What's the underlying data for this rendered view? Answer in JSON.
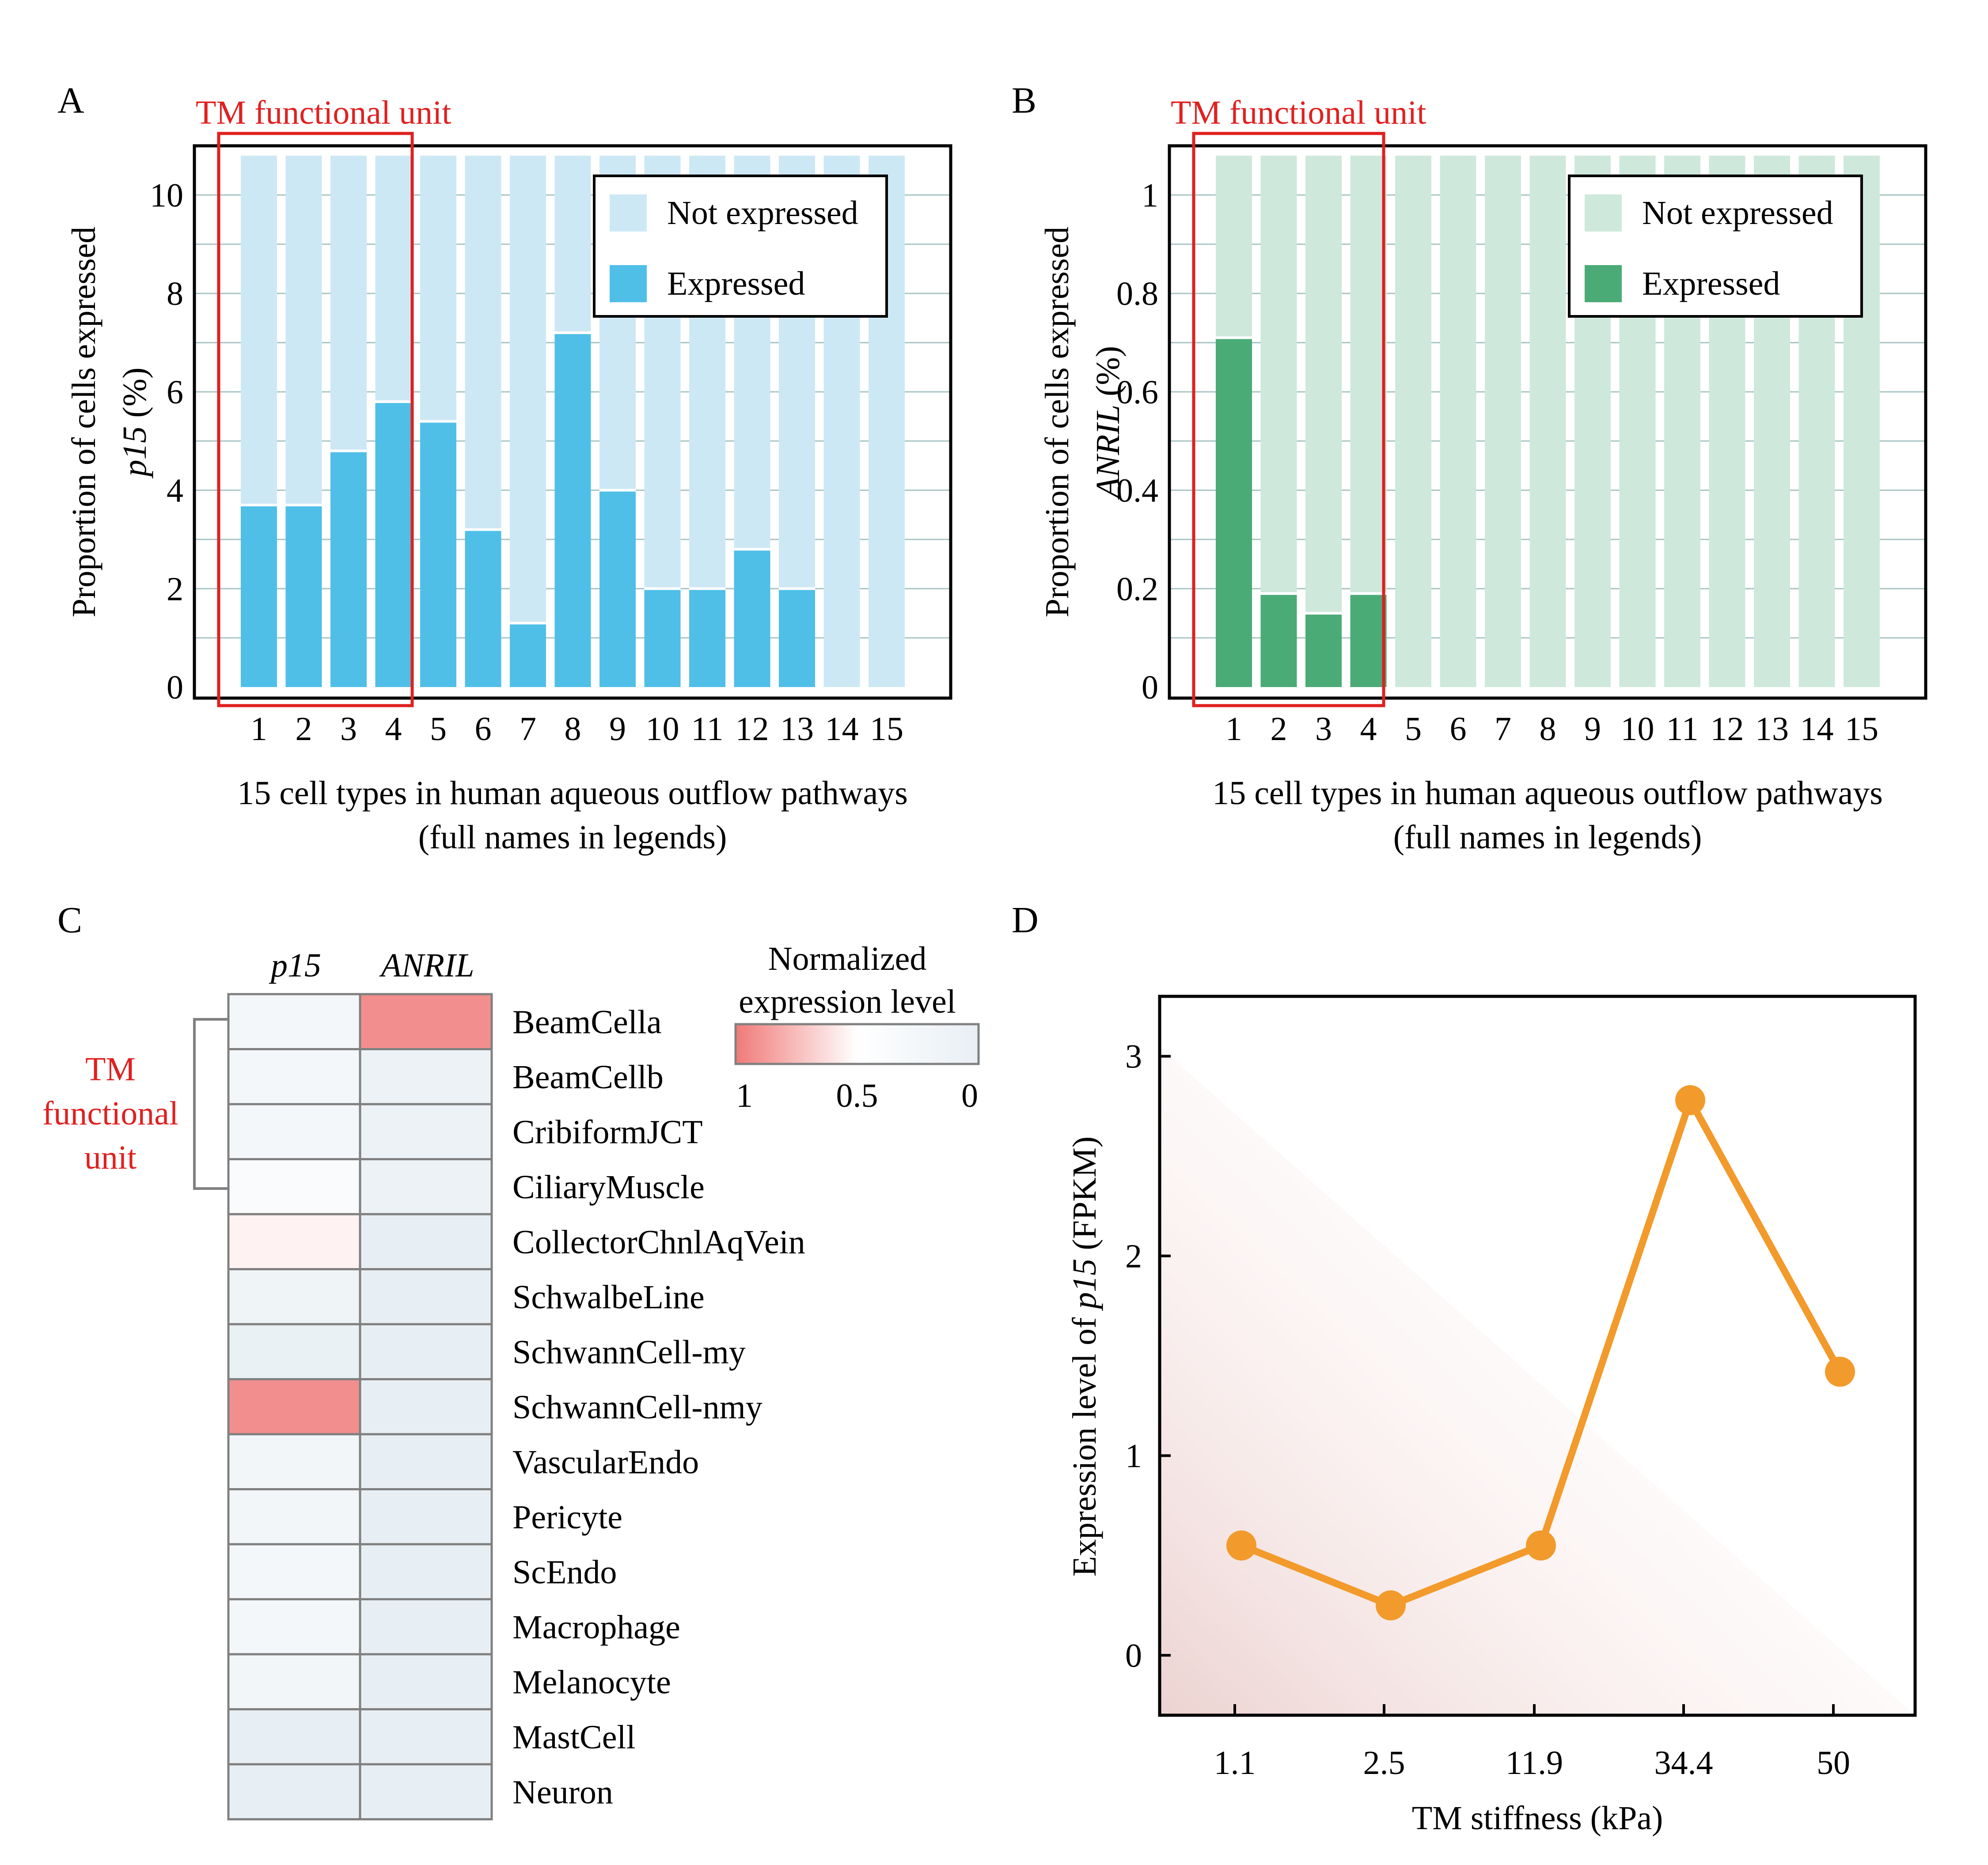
{
  "chart_data": [
    {
      "panel": "A",
      "type": "bar",
      "stacked": true,
      "annotation": "TM functional unit",
      "categories": [
        "1",
        "2",
        "3",
        "4",
        "5",
        "6",
        "7",
        "8",
        "9",
        "10",
        "11",
        "12",
        "13",
        "14",
        "15"
      ],
      "series": [
        {
          "name": "Expressed",
          "color": "#4fbfe8",
          "values": [
            3.7,
            3.7,
            4.8,
            5.8,
            5.4,
            3.2,
            1.3,
            7.2,
            4.0,
            2.0,
            2.0,
            2.8,
            2.0,
            0,
            0
          ]
        },
        {
          "name": "Not expressed",
          "color": "#cde8f5",
          "values": [
            7.1,
            7.1,
            6.0,
            5.0,
            5.4,
            7.6,
            9.5,
            3.6,
            6.8,
            8.8,
            8.8,
            8.0,
            8.8,
            10.8,
            10.8
          ]
        }
      ],
      "ylabel_line1": "Proportion of cells expressed",
      "ylabel_gene": "p15",
      "ylabel_unit": " (%)",
      "xlabel_line1": "15 cell types in human aqueous outflow pathways",
      "xlabel_line2": "(full names in legends)",
      "ylim": [
        0,
        11
      ],
      "yticks": [
        "0",
        "2",
        "4",
        "6",
        "8",
        "10"
      ],
      "legend": [
        "Not expressed",
        "Expressed"
      ],
      "legend_position": "top-right",
      "grid": true
    },
    {
      "panel": "B",
      "type": "bar",
      "stacked": true,
      "annotation": "TM functional unit",
      "categories": [
        "1",
        "2",
        "3",
        "4",
        "5",
        "6",
        "7",
        "8",
        "9",
        "10",
        "11",
        "12",
        "13",
        "14",
        "15"
      ],
      "series": [
        {
          "name": "Expressed",
          "color": "#4aab77",
          "values": [
            0.71,
            0.19,
            0.15,
            0.19,
            0,
            0,
            0,
            0,
            0,
            0,
            0,
            0,
            0,
            0,
            0
          ]
        },
        {
          "name": "Not expressed",
          "color": "#cfe8dc",
          "values": [
            0.37,
            0.89,
            0.93,
            0.89,
            1.08,
            1.08,
            1.08,
            1.08,
            1.08,
            1.08,
            1.08,
            1.08,
            1.08,
            1.08,
            1.08
          ]
        }
      ],
      "ylabel_line1": "Proportion of cells expressed",
      "ylabel_gene": "ANRIL",
      "ylabel_unit": " (%)",
      "xlabel_line1": "15 cell types in human aqueous outflow pathways",
      "xlabel_line2": "(full names in legends)",
      "ylim": [
        0,
        1.1
      ],
      "yticks": [
        "0",
        "0.2",
        "0.4",
        "0.6",
        "0.8",
        "1"
      ],
      "legend": [
        "Not expressed",
        "Expressed"
      ],
      "legend_position": "top-right",
      "grid": true
    },
    {
      "panel": "C",
      "type": "heatmap",
      "columns": [
        "p15",
        "ANRIL"
      ],
      "rows": [
        "BeamCella",
        "BeamCellb",
        "CribiformJCT",
        "CiliaryMuscle",
        "CollectorChnlAqVein",
        "SchwalbeLine",
        "SchwannCell-my",
        "SchwannCell-nmy",
        "VascularEndo",
        "Pericyte",
        "ScEndo",
        "Macrophage",
        "Melanocyte",
        "MastCell",
        "Neuron"
      ],
      "values": [
        [
          0.25,
          0.92
        ],
        [
          0.25,
          0.08
        ],
        [
          0.25,
          0.08
        ],
        [
          0.38,
          0.08
        ],
        [
          0.55,
          0
        ],
        [
          0.15,
          0
        ],
        [
          0.05,
          0
        ],
        [
          0.92,
          0
        ],
        [
          0.22,
          0
        ],
        [
          0.22,
          0
        ],
        [
          0.25,
          0
        ],
        [
          0.25,
          0
        ],
        [
          0.22,
          0
        ],
        [
          0,
          0
        ],
        [
          0,
          0
        ]
      ],
      "bracket_label": [
        "TM",
        "functional",
        "unit"
      ],
      "colorbar_title": [
        "Normalized",
        "expression level"
      ],
      "colorbar_ticks": [
        "1",
        "0.5",
        "0"
      ],
      "colorbar_range": [
        0,
        1
      ],
      "color_high": "#f07a78",
      "color_mid": "#ffffff",
      "color_low": "#e8eff4"
    },
    {
      "panel": "D",
      "type": "line",
      "title": "",
      "x": [
        "1.1",
        "2.5",
        "11.9",
        "34.4",
        "50"
      ],
      "values": [
        0.55,
        0.25,
        0.55,
        2.78,
        1.42
      ],
      "series_color": "#f29a2b",
      "xlabel": "TM stiffness (kPa)",
      "ylabel_prefix": "Expression level of ",
      "ylabel_gene": "p15",
      "ylabel_suffix": " (FPKM)",
      "ylim": [
        -0.3,
        3.3
      ],
      "yticks": [
        "0",
        "1",
        "2",
        "3"
      ],
      "grid": false
    }
  ],
  "panel_labels": {
    "a": "A",
    "b": "B",
    "c": "C",
    "d": "D"
  }
}
